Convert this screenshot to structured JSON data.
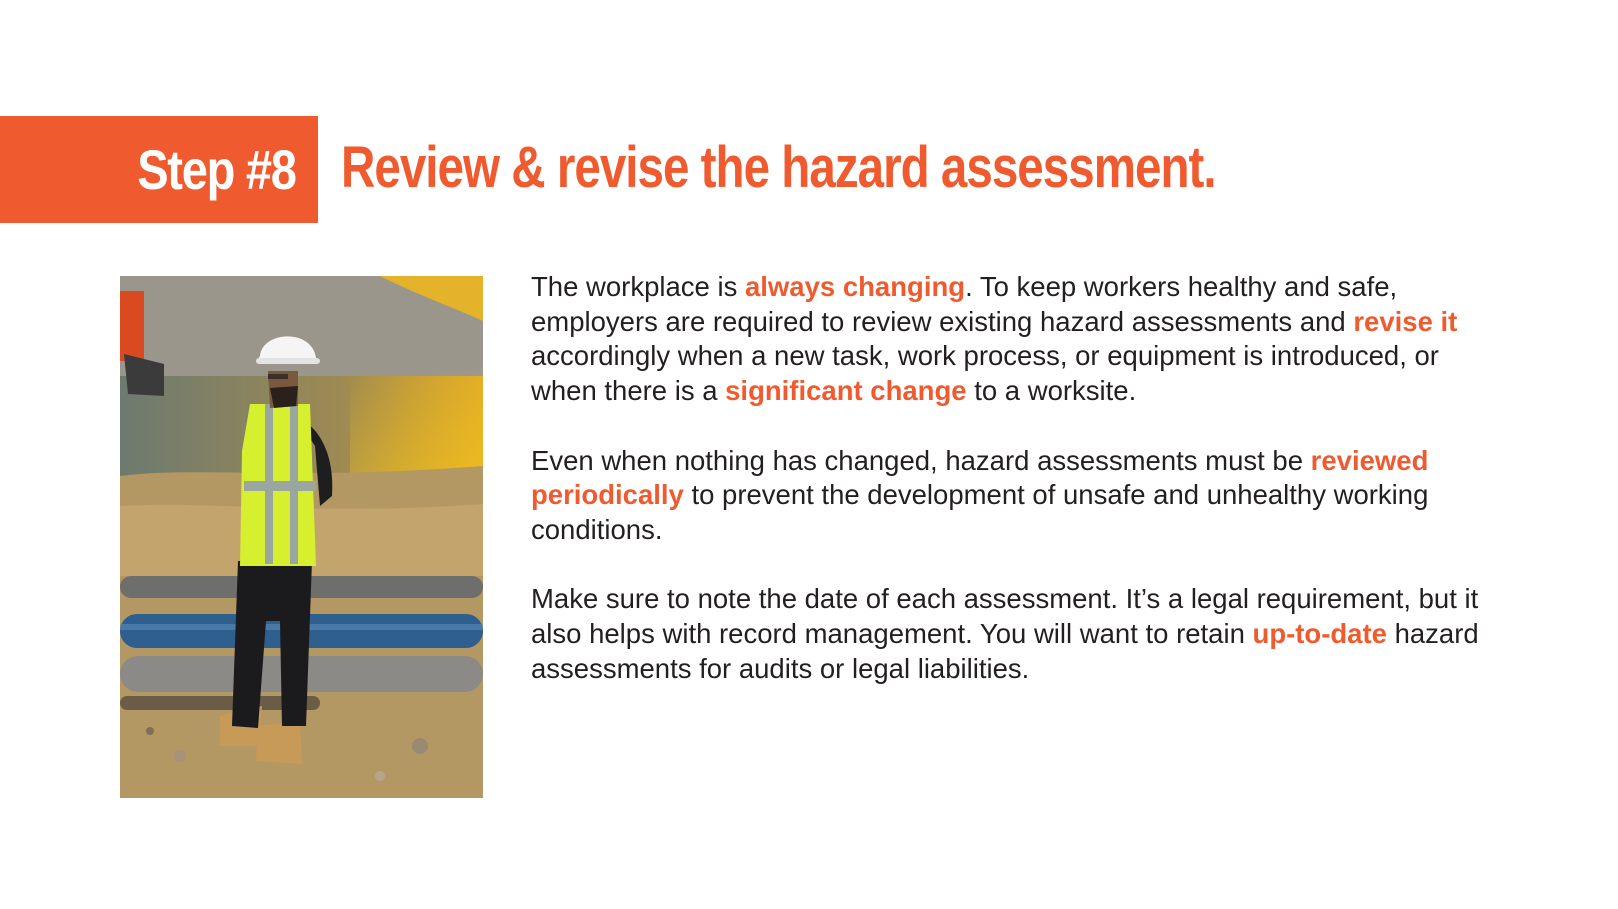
{
  "header": {
    "step_label": "Step #8",
    "title": "Review & revise the hazard assessment."
  },
  "colors": {
    "accent": "#ef5b2f",
    "text": "#231f20",
    "background": "#ffffff"
  },
  "photo": {
    "subject": "worker-in-hard-hat-and-hi-vis-vest"
  },
  "paragraphs": [
    {
      "s1": "The workplace is ",
      "h1": "always changing",
      "s2": ". To keep workers healthy and safe, employers are required to review existing hazard assessments and ",
      "h2": "revise it",
      "s3": " accordingly when a new task, work process, or equipment is introduced, or when there is a ",
      "h3": "significant change",
      "s4": " to a worksite."
    },
    {
      "s1": "Even when nothing has changed, hazard assessments must be ",
      "h1": "reviewed periodically",
      "s2": " to prevent the development of unsafe and unhealthy working conditions."
    },
    {
      "s1": "Make sure to note the date of each assessment. It’s a legal requirement, but it also helps with record management. You will want to retain ",
      "h1": "up-to-date",
      "s2": " hazard assessments for audits or legal liabilities."
    }
  ]
}
